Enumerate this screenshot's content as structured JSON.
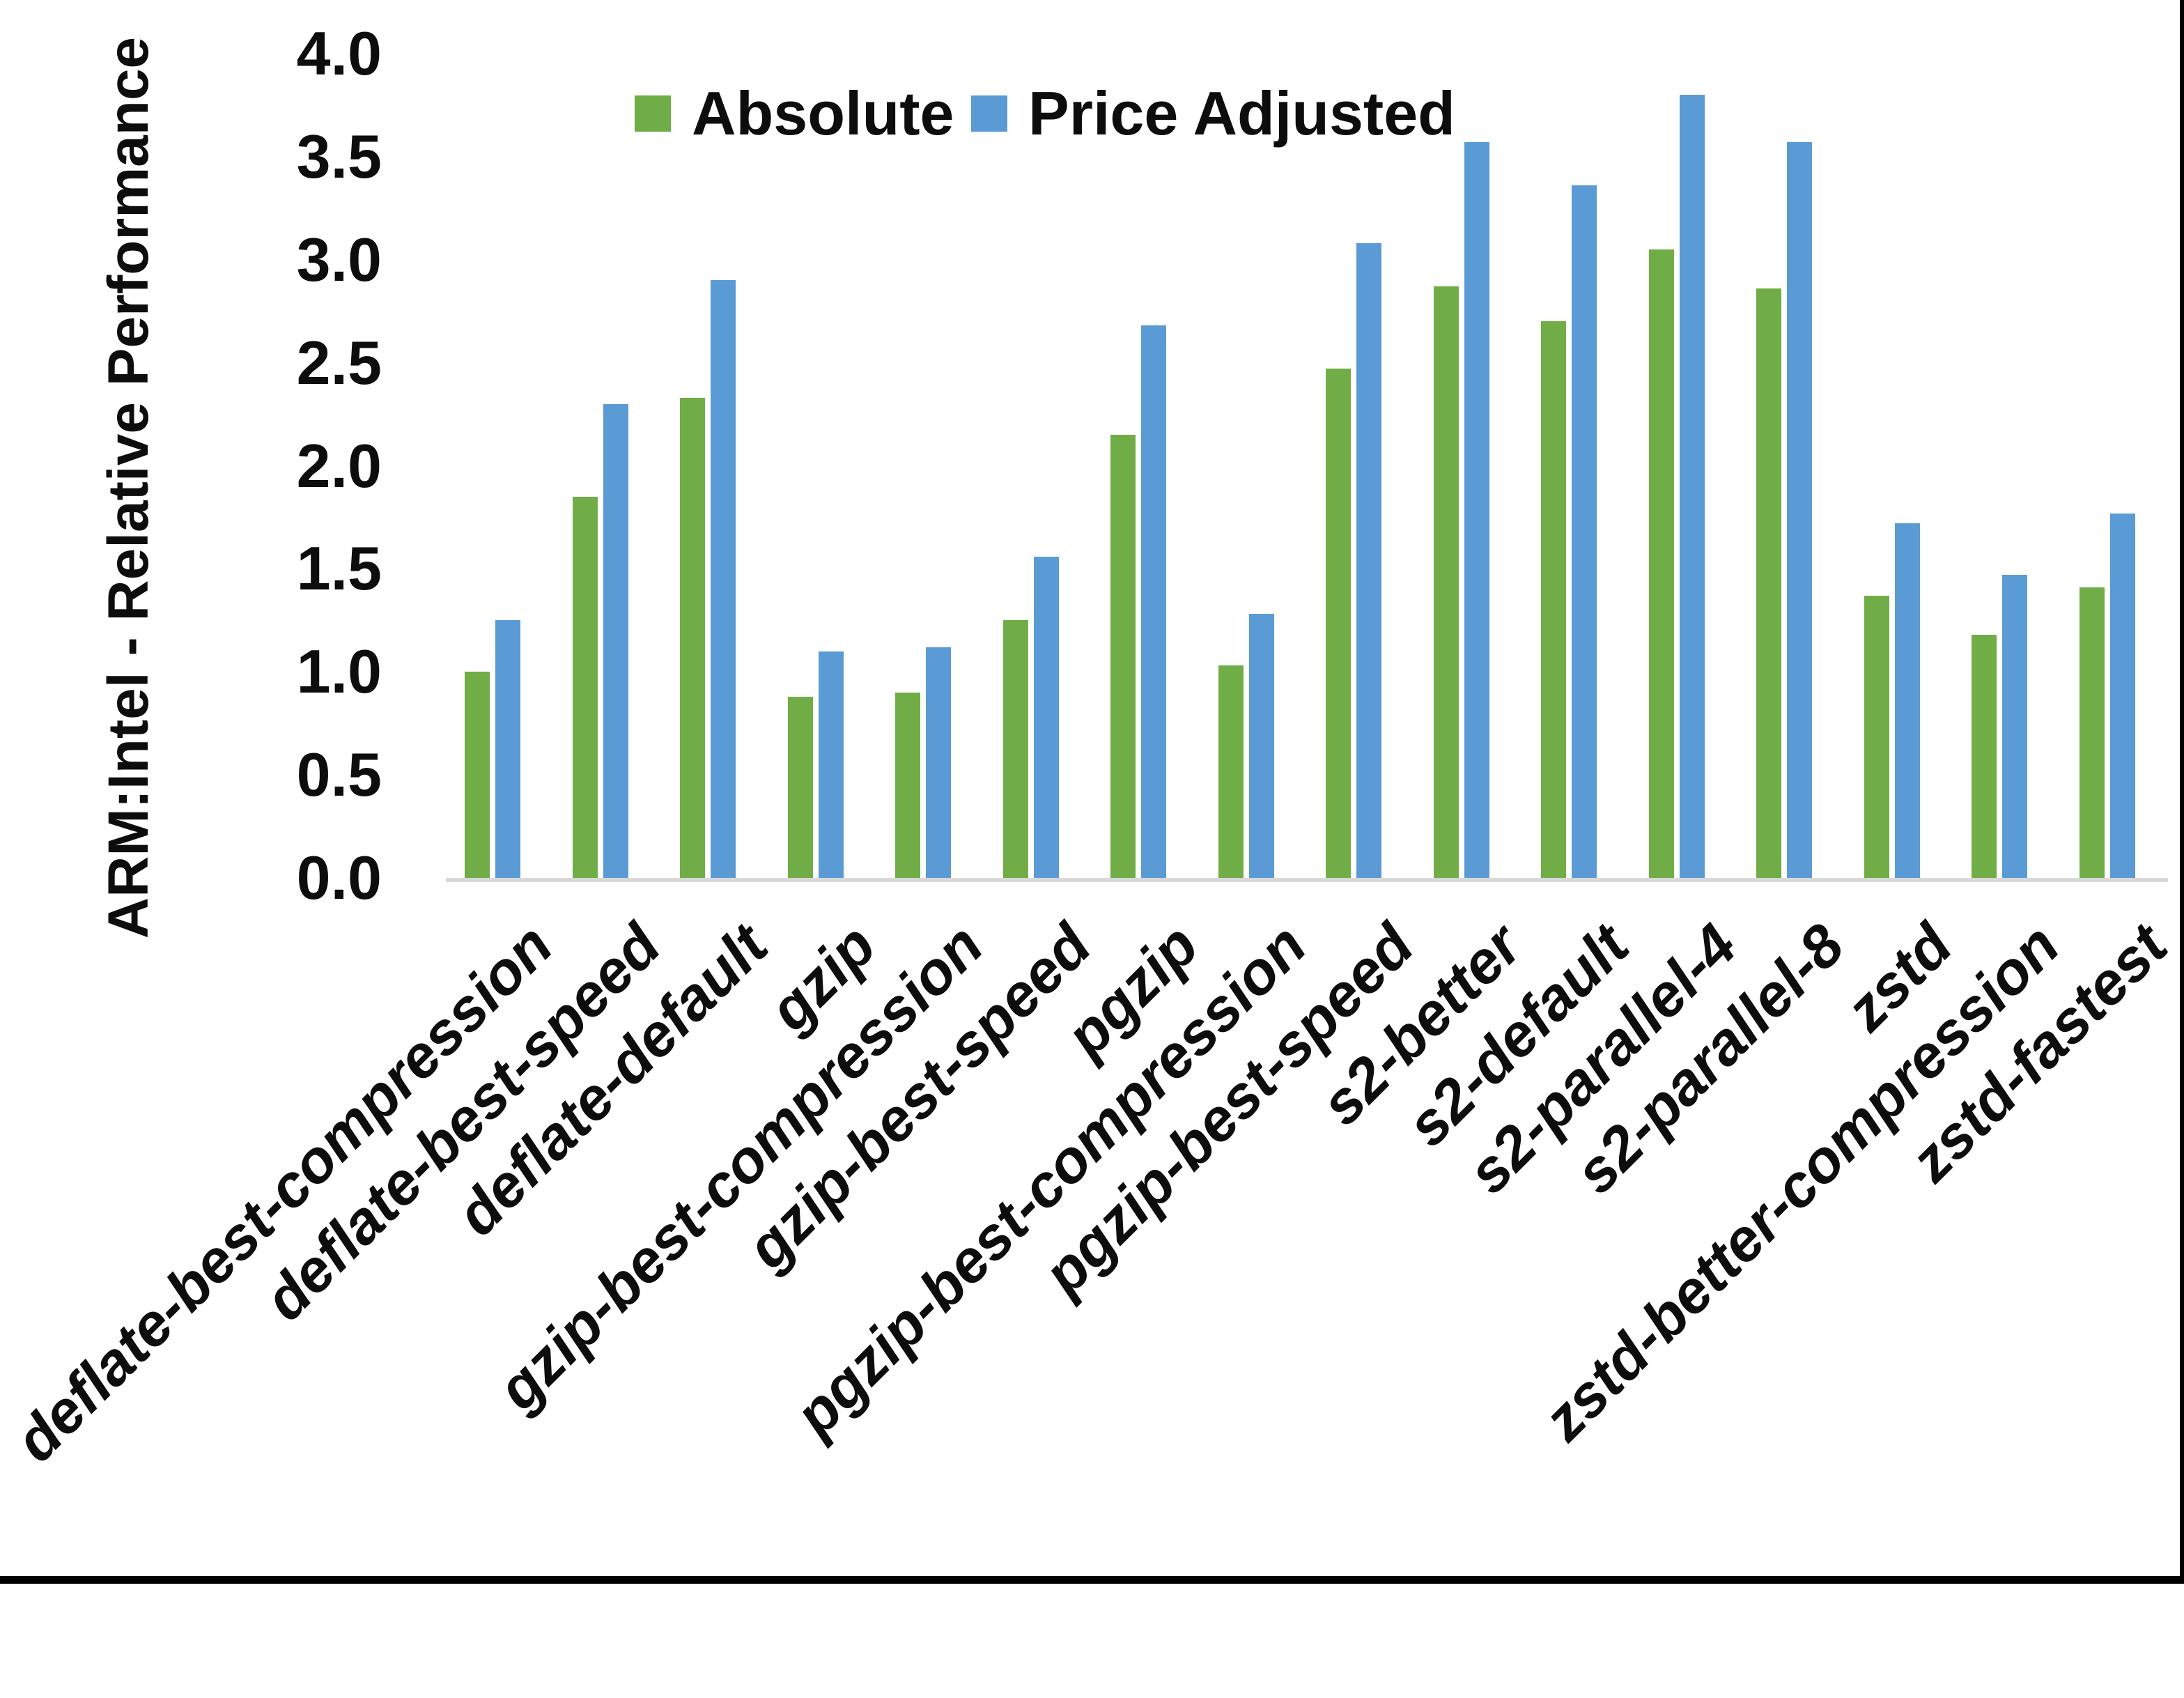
{
  "colors": {
    "absolute_series": "#70AD47",
    "price_adjusted_series": "#5B9BD5",
    "axis_line": "#D9D9D9",
    "text": "#0D0D0D",
    "window_border": "#000000",
    "background": "#FFFFFF"
  },
  "legend": {
    "items": [
      "Absolute",
      "Price Adjusted"
    ]
  },
  "chart_data": {
    "type": "bar",
    "title": "",
    "xlabel": "",
    "ylabel": "ARM:Intel - Relative Performance",
    "ylim": [
      0.0,
      4.0
    ],
    "ytick_step": 0.5,
    "ytick_labels": [
      "4.0",
      "3.5",
      "3.0",
      "2.5",
      "2.0",
      "1.5",
      "1.0",
      "0.5",
      "0.0"
    ],
    "grid": false,
    "legend_position": "top-center",
    "categories": [
      "deflate-best-compression",
      "deflate-best-speed",
      "deflate-default",
      "gzip",
      "gzip-best-compression",
      "gzip-best-speed",
      "pgzip",
      "pgzip-best-compression",
      "pgzip-best-speed",
      "s2-better",
      "s2-default",
      "s2-parallel-4",
      "s2-parallel-8",
      "zstd",
      "zstd-better-compression",
      "zstd-fastest"
    ],
    "series": [
      {
        "name": "Absolute",
        "color": "#70AD47",
        "values": [
          1.0,
          1.85,
          2.33,
          0.88,
          0.9,
          1.25,
          2.15,
          1.03,
          2.47,
          2.87,
          2.7,
          3.05,
          2.86,
          1.37,
          1.18,
          1.41
        ]
      },
      {
        "name": "Price Adjusted",
        "color": "#5B9BD5",
        "values": [
          1.25,
          2.3,
          2.9,
          1.1,
          1.12,
          1.56,
          2.68,
          1.28,
          3.08,
          3.57,
          3.36,
          3.8,
          3.57,
          1.72,
          1.47,
          1.77
        ]
      }
    ]
  }
}
